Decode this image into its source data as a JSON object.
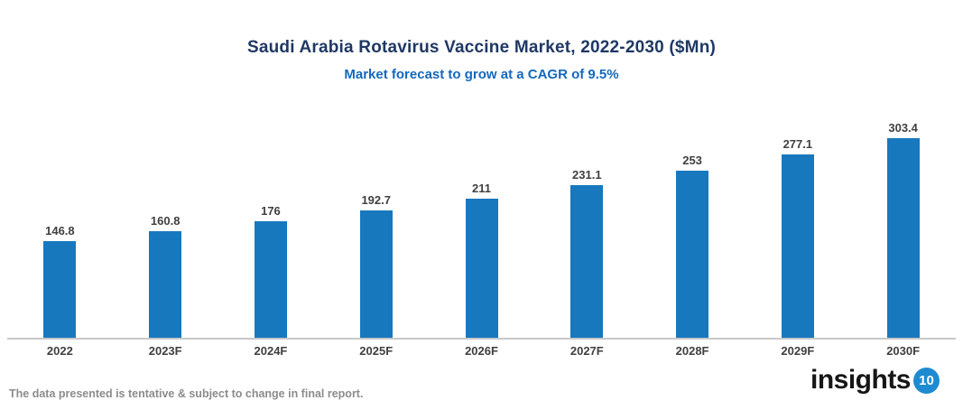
{
  "header": {
    "title": "Saudi Arabia Rotavirus Vaccine Market, 2022-2030 ($Mn)",
    "subtitle": "Market forecast to grow at a CAGR of 9.5%"
  },
  "footer": {
    "note": "The data presented is tentative & subject to change in final report.",
    "logo_text": "insights",
    "logo_badge": "10"
  },
  "colors": {
    "bar": "#1878be",
    "title": "#1f3864",
    "subtitle": "#1468bd",
    "axis_line": "#c8c8c8",
    "value_label": "#404040",
    "x_label": "#3f3f3f",
    "footer_note": "#8c8c8c",
    "logo_badge_bg": "#1e8bd1"
  },
  "chart_data": {
    "type": "bar",
    "categories": [
      "2022",
      "2023F",
      "2024F",
      "2025F",
      "2026F",
      "2027F",
      "2028F",
      "2029F",
      "2030F"
    ],
    "values": [
      146.8,
      160.8,
      176,
      192.7,
      211,
      231.1,
      253,
      277.1,
      303.4
    ],
    "title": "Saudi Arabia Rotavirus Vaccine Market, 2022-2030 ($Mn)",
    "subtitle": "Market forecast to grow at a CAGR of 9.5%",
    "xlabel": "",
    "ylabel": "",
    "ylim": [
      0,
      320
    ],
    "grid": false,
    "legend": null,
    "data_labels": true,
    "bar_color": "#1878be"
  }
}
